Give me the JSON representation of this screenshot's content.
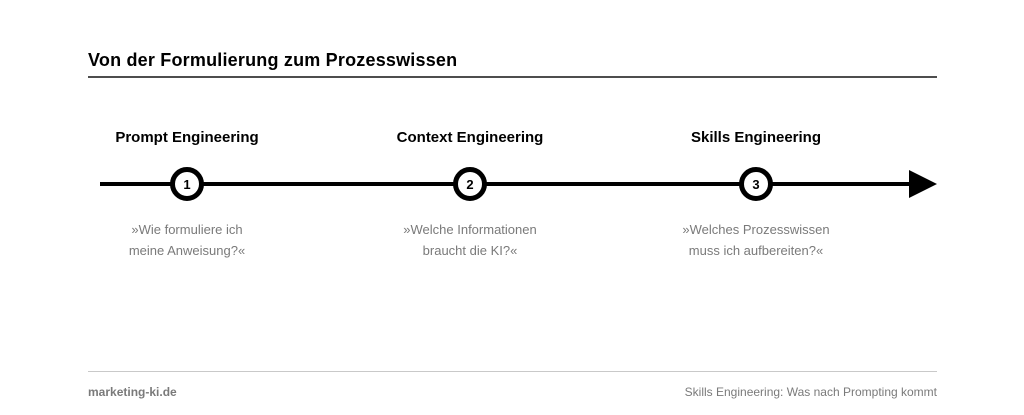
{
  "title": "Von der Formulierung zum Prozesswissen",
  "stages": [
    {
      "number": "1",
      "heading": "Prompt Engineering",
      "quote": "»Wie formuliere ich\nmeine Anweisung?«"
    },
    {
      "number": "2",
      "heading": "Context Engineering",
      "quote": "»Welche Informationen\nbraucht die KI?«"
    },
    {
      "number": "3",
      "heading": "Skills Engineering",
      "quote": "»Welches Prozesswissen\nmuss ich aufbereiten?«"
    }
  ],
  "footer": {
    "left": "marketing-ki.de",
    "right": "Skills Engineering: Was nach Prompting kommt"
  },
  "colors": {
    "ink": "#000000",
    "muted": "#7a7a7a",
    "rule_dark": "#4d4d4d",
    "rule_light": "#c9c9c9",
    "background": "#ffffff",
    "marker_fill": "#ffffff"
  }
}
